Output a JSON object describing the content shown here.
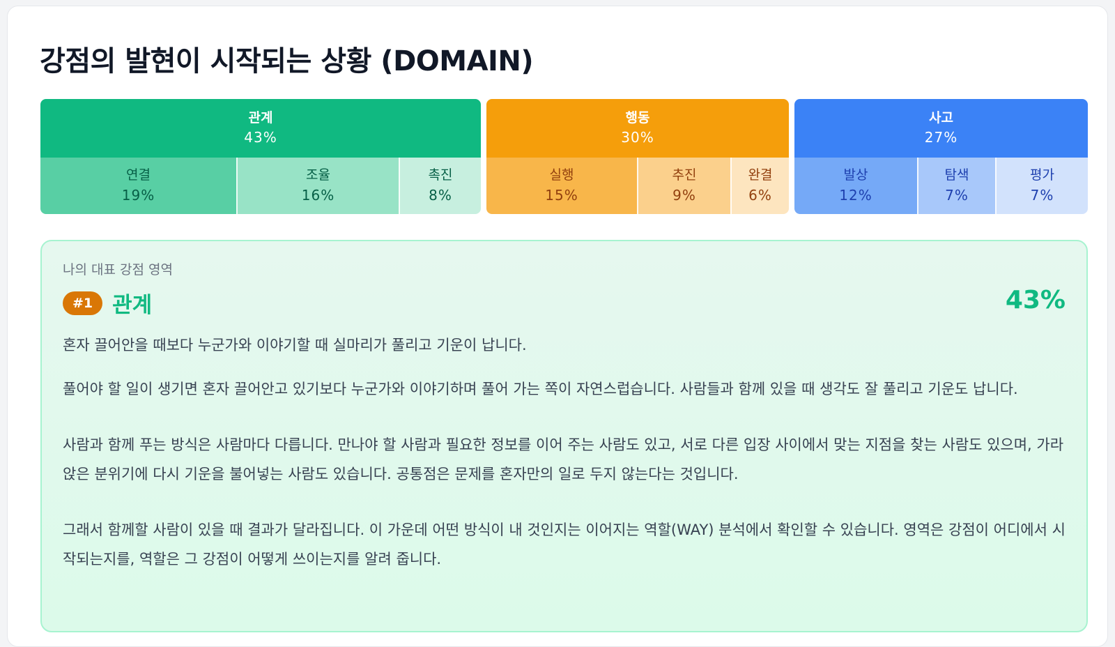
{
  "title": "강점의 발현이 시작되는 상황 (DOMAIN)",
  "domains": [
    {
      "name": "관계",
      "pct": "43%",
      "color": "#10b981",
      "subs": [
        {
          "name": "연결",
          "pct": "19%",
          "bg": "#58cfa4",
          "fg": "#065f46"
        },
        {
          "name": "조율",
          "pct": "16%",
          "bg": "#98e3c6",
          "fg": "#065f46"
        },
        {
          "name": "촉진",
          "pct": "8%",
          "bg": "#c7efdf",
          "fg": "#065f46"
        }
      ]
    },
    {
      "name": "행동",
      "pct": "30%",
      "color": "#f59e0b",
      "subs": [
        {
          "name": "실행",
          "pct": "15%",
          "bg": "#f8b64a",
          "fg": "#92400e"
        },
        {
          "name": "추진",
          "pct": "9%",
          "bg": "#fbd08c",
          "fg": "#92400e"
        },
        {
          "name": "완결",
          "pct": "6%",
          "bg": "#fde5bf",
          "fg": "#92400e"
        }
      ]
    },
    {
      "name": "사고",
      "pct": "27%",
      "color": "#3b82f6",
      "subs": [
        {
          "name": "발상",
          "pct": "12%",
          "bg": "#75a9f7",
          "fg": "#1e40af"
        },
        {
          "name": "탐색",
          "pct": "7%",
          "bg": "#a8c8fa",
          "fg": "#1e40af"
        },
        {
          "name": "평가",
          "pct": "7%",
          "bg": "#d2e2fc",
          "fg": "#1e40af"
        }
      ]
    }
  ],
  "detail": {
    "eyebrow": "나의 대표 강점 영역",
    "rank": "#1",
    "name": "관계",
    "pct": "43%",
    "lead": "혼자 끌어안을 때보다 누군가와 이야기할 때 실마리가 풀리고 기운이 납니다.",
    "paragraphs": [
      "풀어야 할 일이 생기면 혼자 끌어안고 있기보다 누군가와 이야기하며 풀어 가는 쪽이 자연스럽습니다. 사람들과 함께 있을 때 생각도 잘 풀리고 기운도 납니다.",
      "사람과 함께 푸는 방식은 사람마다 다릅니다. 만나야 할 사람과 필요한 정보를 이어 주는 사람도 있고, 서로 다른 입장 사이에서 맞는 지점을 찾는 사람도 있으며, 가라앉은 분위기에 다시 기운을 불어넣는 사람도 있습니다. 공통점은 문제를 혼자만의 일로 두지 않는다는 것입니다.",
      "그래서 함께할 사람이 있을 때 결과가 달라집니다. 이 가운데 어떤 방식이 내 것인지는 이어지는 역할(WAY) 분석에서 확인할 수 있습니다. 영역은 강점이 어디에서 시작되는지를, 역할은 그 강점이 어떻게 쓰이는지를 알려 줍니다."
    ]
  }
}
